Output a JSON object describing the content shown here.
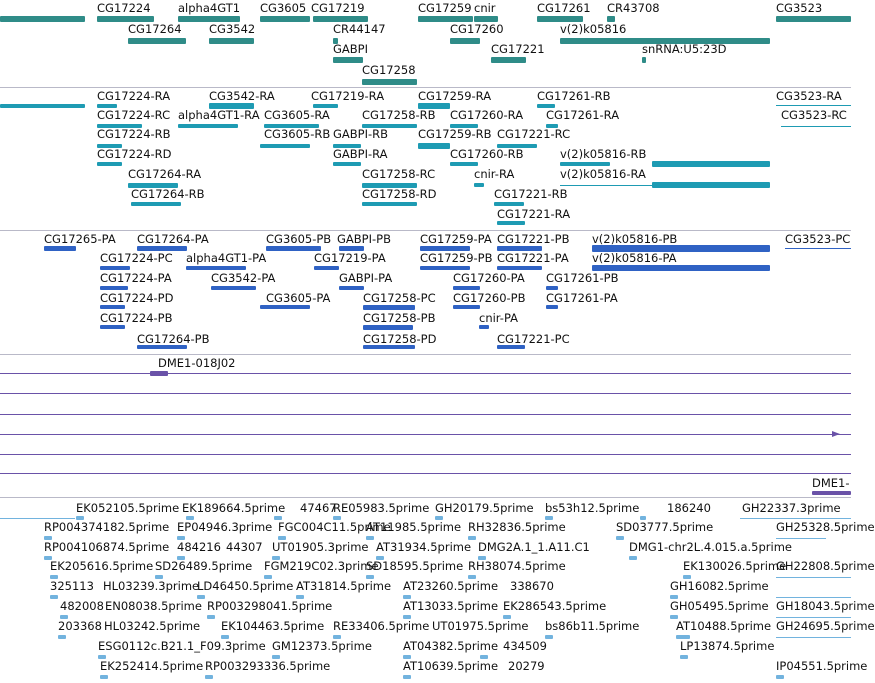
{
  "colors": {
    "gene": "#2f8c88",
    "transcript_rna": "#1e9bb3",
    "transcript_pa": "#2f62c4",
    "clone": "#6a52a8",
    "est": "#72b3de",
    "divider": "#b9b9c8"
  },
  "tracks": {
    "genes": {
      "labels": [
        "CG17224",
        "alpha4GT1",
        "CG3605",
        "CG17219",
        "CG17259",
        "cnir",
        "CG17261",
        "CR43708",
        "CG3523",
        "CG17264",
        "CG3542",
        "CR44147",
        "CG17260",
        "v(2)k05816",
        "GABPI",
        "CG17221",
        "snRNA:U5:23D",
        "CG17258"
      ]
    },
    "transcripts_rna": {
      "labels": [
        "CG17224-RA",
        "CG3542-RA",
        "CG17219-RA",
        "CG17259-RA",
        "CG17261-RB",
        "CG3523-RA",
        "CG17224-RC",
        "alpha4GT1-RA",
        "CG3605-RA",
        "CG17258-RB",
        "CG17260-RA",
        "CG17261-RA",
        "CG3523-RC",
        "CG17224-RB",
        "CG3605-RB",
        "GABPI-RB",
        "CG17259-RB",
        "CG17221-RC",
        "CG17224-RD",
        "GABPI-RA",
        "CG17260-RB",
        "v(2)k05816-RB",
        "CG17264-RA",
        "CG17258-RC",
        "cnir-RA",
        "v(2)k05816-RA",
        "CG17264-RB",
        "CG17258-RD",
        "CG17221-RB",
        "CG17221-RA"
      ]
    },
    "transcripts_pa": {
      "labels": [
        "CG17265-PA",
        "CG17264-PA",
        "CG3605-PB",
        "GABPI-PB",
        "CG17259-PA",
        "CG17221-PB",
        "v(2)k05816-PB",
        "CG3523-PC",
        "CG17224-PC",
        "alpha4GT1-PA",
        "CG17219-PA",
        "CG17259-PB",
        "CG17221-PA",
        "v(2)k05816-PA",
        "CG17224-PA",
        "CG3542-PA",
        "GABPI-PA",
        "CG17260-PA",
        "CG17261-PB",
        "CG17224-PD",
        "CG3605-PA",
        "CG17258-PC",
        "CG17260-PB",
        "CG17261-PA",
        "CG17224-PB",
        "CG17258-PB",
        "cnir-PA",
        "CG17264-PB",
        "CG17258-PD",
        "CG17221-PC"
      ]
    },
    "clones": {
      "labels": [
        "DME1-018J02",
        "DME1-"
      ]
    },
    "ests": {
      "labels": [
        "EK052105.5prime",
        "EK189664.5prime",
        "47467",
        "RE05983.5prime",
        "GH20179.5prime",
        "bs53h12.5prime",
        "186240",
        "GH22337.3prime",
        "RP004374182.5prime",
        "EP04946.3prime",
        "FGC004C11.5prime",
        "AT11985.5prime",
        "RH32836.5prime",
        "SD03777.5prime",
        "GH25328.5prime",
        "RP004106874.5prime",
        "484216",
        "44307",
        "UT01905.3prime",
        "AT31934.5prime",
        "DMG2A.1_1.A11.C1",
        "DMG1-chr2L.4.015.a.5prime",
        "EK205616.5prime",
        "SD26489.5prime",
        "FGM219C02.3prime",
        "SD18595.5prime",
        "RH38074.5prime",
        "EK130026.5prime",
        "GH22808.5prime",
        "325113",
        "HL03239.3prime",
        "LD46450.5prime",
        "AT31814.5prime",
        "AT23260.5prime",
        "338670",
        "GH16082.5prime",
        "482008",
        "EN08038.5prime",
        "RP003298041.5prime",
        "AT13033.5prime",
        "EK286543.5prime",
        "GH05495.5prime",
        "GH18043.5prime",
        "203368",
        "HL03242.5prime",
        "EK104463.5prime",
        "RE33406.5prime",
        "UT01975.5prime",
        "bs86b11.5prime",
        "AT10488.5prime",
        "GH24695.5prime",
        "ESG0112c.B21.1_F09.3prime",
        "GM12373.5prime",
        "AT04382.5prime",
        "434509",
        "LP13874.5prime",
        "EK252414.5prime",
        "RP003293336.5prime",
        "AT10639.5prime",
        "20279",
        "IP04551.5prime"
      ]
    }
  }
}
